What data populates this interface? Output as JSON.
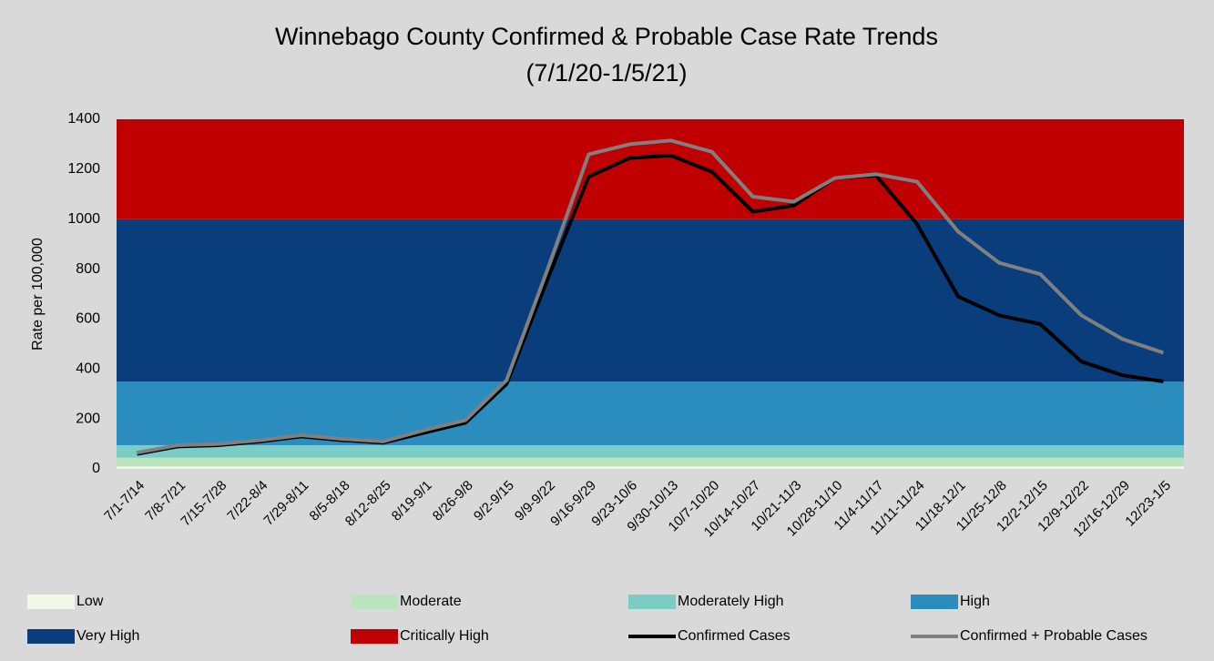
{
  "chart_data": {
    "type": "line",
    "title": "Winnebago County Confirmed & Probable Case Rate Trends",
    "subtitle": "(7/1/20-1/5/21)",
    "y_label": "Rate per 100,000",
    "categories": [
      "7/1-7/14",
      "7/8-7/21",
      "7/15-7/28",
      "7/22-8/4",
      "7/29-8/11",
      "8/5-8/18",
      "8/12-8/25",
      "8/19-9/1",
      "8/26-9/8",
      "9/2-9/15",
      "9/9-9/22",
      "9/16-9/29",
      "9/23-10/6",
      "9/30-10/13",
      "10/7-10/20",
      "10/14-10/27",
      "10/21-11/3",
      "10/28-11/10",
      "11/4-11/17",
      "11/11-11/24",
      "11/18-12/1",
      "11/25-12/8",
      "12/2-12/15",
      "12/9-12/22",
      "12/16-12/29",
      "12/23-1/5"
    ],
    "bands": [
      {
        "name": "Low",
        "color": "#f0f9e8",
        "from": 0,
        "to": 10
      },
      {
        "name": "Moderate",
        "color": "#bae4bc",
        "from": 10,
        "to": 45
      },
      {
        "name": "Moderately High",
        "color": "#7bccc4",
        "from": 45,
        "to": 95
      },
      {
        "name": "High",
        "color": "#2b8cbe",
        "from": 95,
        "to": 350
      },
      {
        "name": "Very High",
        "color": "#0a3d7c",
        "from": 350,
        "to": 1000
      },
      {
        "name": "Critically High",
        "color": "#c00000",
        "from": 1000,
        "to": 1400
      }
    ],
    "series": [
      {
        "name": "Confirmed Cases",
        "color": "#000000",
        "values": [
          60,
          90,
          95,
          110,
          130,
          115,
          105,
          145,
          185,
          340,
          760,
          1170,
          1245,
          1255,
          1190,
          1030,
          1055,
          1165,
          1175,
          980,
          690,
          615,
          580,
          430,
          375,
          350
        ]
      },
      {
        "name": "Confirmed + Probable Cases",
        "color": "#808080",
        "values": [
          65,
          95,
          100,
          115,
          135,
          120,
          110,
          155,
          195,
          355,
          800,
          1260,
          1300,
          1315,
          1270,
          1090,
          1070,
          1165,
          1180,
          1150,
          950,
          825,
          780,
          615,
          520,
          465
        ]
      }
    ],
    "ylim": [
      0,
      1400
    ],
    "yticks": [
      0,
      200,
      400,
      600,
      800,
      1000,
      1200,
      1400
    ]
  }
}
